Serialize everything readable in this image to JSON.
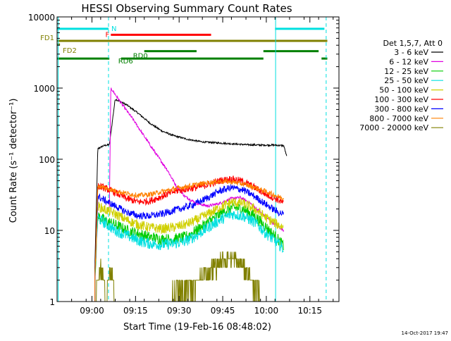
{
  "chart_data": {
    "type": "line",
    "title": "HESSI Observing Summary Count Rates",
    "xlabel": "Start Time (19-Feb-16 08:48:02)",
    "ylabel": "Count Rate (s⁻¹ detector⁻¹)",
    "x_unit": "minutes since 08:48:02",
    "xlim": [
      0,
      97
    ],
    "ylim": [
      1,
      10000
    ],
    "yscale": "log",
    "x_ticks": [
      {
        "x": 12,
        "label": "09:00"
      },
      {
        "x": 27,
        "label": "09:15"
      },
      {
        "x": 42,
        "label": "09:30"
      },
      {
        "x": 57,
        "label": "09:45"
      },
      {
        "x": 72,
        "label": "10:00"
      },
      {
        "x": 87,
        "label": "10:15"
      }
    ],
    "y_ticks": [
      {
        "y": 1,
        "label": "1"
      },
      {
        "y": 10,
        "label": "10"
      },
      {
        "y": 100,
        "label": "100"
      },
      {
        "y": 1000,
        "label": "1000"
      },
      {
        "y": 10000,
        "label": "10000"
      }
    ],
    "legend": {
      "position": "right",
      "header": "Det 1,5,7, Att 0"
    },
    "series": [
      {
        "name": "3 - 6 keV",
        "color": "#000000",
        "x": [
          13,
          14,
          16,
          18,
          20,
          24,
          28,
          32,
          36,
          40,
          45,
          50,
          55,
          60,
          65,
          70,
          75,
          78,
          79
        ],
        "y": [
          3,
          140,
          155,
          160,
          700,
          580,
          440,
          320,
          250,
          215,
          190,
          175,
          170,
          165,
          160,
          158,
          158,
          155,
          110
        ]
      },
      {
        "name": "6 - 12 keV",
        "color": "#e000e0",
        "x": [
          18,
          18.5,
          22,
          26,
          30,
          34,
          38,
          41,
          44,
          48,
          52,
          56,
          60,
          63,
          66,
          70,
          74,
          78
        ],
        "y": [
          20,
          1000,
          620,
          370,
          210,
          120,
          70,
          42,
          30,
          24,
          22,
          24,
          28,
          29,
          25,
          18,
          13,
          10
        ]
      },
      {
        "name": "12 - 25 keV",
        "color": "#00cc00",
        "x": [
          13,
          14,
          16,
          20,
          24,
          28,
          32,
          36,
          40,
          44,
          48,
          52,
          56,
          60,
          64,
          68,
          72,
          76,
          78
        ],
        "y": [
          2,
          16,
          14,
          12,
          10,
          9,
          8,
          7.5,
          7.5,
          8,
          10,
          13,
          17,
          21,
          20,
          16,
          11,
          7.5,
          6
        ]
      },
      {
        "name": "25 - 50 keV",
        "color": "#00e0e0",
        "x": [
          13,
          14,
          16,
          20,
          24,
          28,
          32,
          36,
          40,
          44,
          48,
          52,
          56,
          60,
          64,
          68,
          72,
          76,
          78
        ],
        "y": [
          2,
          15,
          13,
          10,
          8.5,
          7.2,
          6.5,
          6.3,
          6.5,
          7,
          8.5,
          11,
          14,
          17,
          16,
          13,
          9,
          6.5,
          5.5
        ]
      },
      {
        "name": "50 - 100 keV",
        "color": "#d0d000",
        "x": [
          13,
          14,
          16,
          20,
          24,
          28,
          32,
          36,
          40,
          44,
          48,
          52,
          56,
          60,
          64,
          68,
          72,
          76,
          78
        ],
        "y": [
          2,
          22,
          20,
          17,
          14,
          12,
          11,
          10.5,
          11,
          12,
          14,
          17,
          21,
          25,
          24,
          20,
          15,
          12,
          11
        ]
      },
      {
        "name": "100 - 300 keV",
        "color": "#ff0000",
        "x": [
          13,
          14,
          16,
          20,
          24,
          28,
          32,
          36,
          40,
          44,
          48,
          52,
          56,
          60,
          64,
          68,
          72,
          76,
          78
        ],
        "y": [
          2,
          42,
          40,
          34,
          28,
          25,
          26,
          30,
          35,
          38,
          40,
          44,
          50,
          53,
          49,
          40,
          32,
          27,
          24
        ]
      },
      {
        "name": "300 - 800 keV",
        "color": "#0000ff",
        "x": [
          13,
          14,
          16,
          20,
          24,
          28,
          32,
          36,
          40,
          44,
          48,
          52,
          56,
          60,
          64,
          68,
          72,
          76,
          78
        ],
        "y": [
          2,
          30,
          27,
          22,
          18,
          16,
          16,
          17,
          19,
          21,
          24,
          29,
          36,
          40,
          37,
          30,
          23,
          18,
          17
        ]
      },
      {
        "name": "800 - 7000 keV",
        "color": "#ff8000",
        "x": [
          13,
          14,
          16,
          20,
          24,
          28,
          32,
          36,
          40,
          44,
          48,
          52,
          56,
          60,
          64,
          68,
          72,
          76,
          78
        ],
        "y": [
          2,
          42,
          40,
          36,
          33,
          31,
          32,
          35,
          38,
          41,
          44,
          47,
          49,
          48,
          45,
          40,
          35,
          30,
          28
        ]
      },
      {
        "name": "7000 - 20000 keV",
        "color": "#808000",
        "x": [
          13,
          14,
          15,
          16,
          17,
          18,
          19,
          20,
          30,
          36,
          40,
          42,
          44,
          46,
          48,
          50,
          52,
          54,
          56,
          58,
          60,
          62,
          64,
          66,
          68,
          70
        ],
        "y": [
          1,
          2,
          3,
          2,
          1,
          3,
          2,
          1,
          1,
          1,
          1.2,
          1.5,
          1.4,
          1.6,
          1.8,
          2.2,
          2.6,
          3.0,
          3.5,
          4.0,
          4.2,
          3.6,
          3.0,
          2.4,
          1.6,
          1.1
        ]
      }
    ],
    "flags": [
      {
        "label": "N",
        "color": "#00e0e0",
        "level": 6800,
        "segments": [
          [
            0,
            17.7
          ],
          [
            75,
            92
          ]
        ]
      },
      {
        "label": "F",
        "color": "#ff0000",
        "level": 5600,
        "segments": [
          [
            18.5,
            53
          ]
        ]
      },
      {
        "label": "FD1",
        "color": "#808000",
        "level": 4600,
        "segments": [
          [
            0,
            93
          ]
        ]
      },
      {
        "label": "FD2",
        "color": "#808000",
        "level": 4100,
        "segments": [
          [
            0,
            1
          ]
        ]
      },
      {
        "label": "RD0",
        "color": "#008000",
        "level": 3300,
        "segments": [
          [
            30,
            48
          ],
          [
            71,
            90
          ]
        ]
      },
      {
        "label": "RD6",
        "color": "#008000",
        "level": 2600,
        "segments": [
          [
            0,
            18
          ],
          [
            22,
            48
          ],
          [
            48,
            71
          ],
          [
            91,
            93
          ]
        ]
      }
    ],
    "vertical_markers": [
      {
        "x": 0.4,
        "color": "#00e0e0",
        "style": "solid"
      },
      {
        "x": 17.7,
        "color": "#00e0e0",
        "style": "dashed"
      },
      {
        "x": 75.2,
        "color": "#00e0e0",
        "style": "solid"
      },
      {
        "x": 92.6,
        "color": "#00e0e0",
        "style": "dashed"
      }
    ]
  },
  "footer": {
    "date_stamp": "14-Oct-2017 19:47"
  }
}
